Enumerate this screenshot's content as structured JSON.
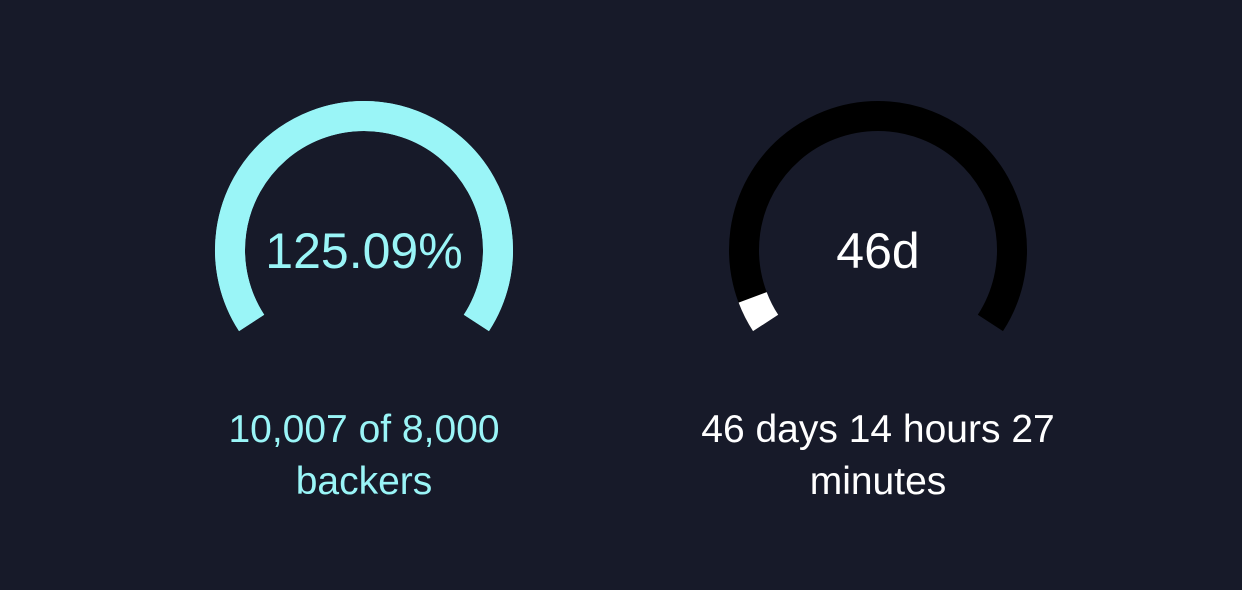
{
  "colors": {
    "background": "#171a29",
    "accent": "#9af5f7",
    "track_dark": "#000000",
    "white": "#ffffff"
  },
  "funding": {
    "center_label": "125.09%",
    "caption_line1": "10,007 of 8,000",
    "caption_line2": "backers",
    "fill_fraction": 1.0
  },
  "time_remaining": {
    "center_label": "46d",
    "caption_line1": "46 days 14 hours 27",
    "caption_line2": "minutes",
    "fill_fraction": 0.05
  }
}
